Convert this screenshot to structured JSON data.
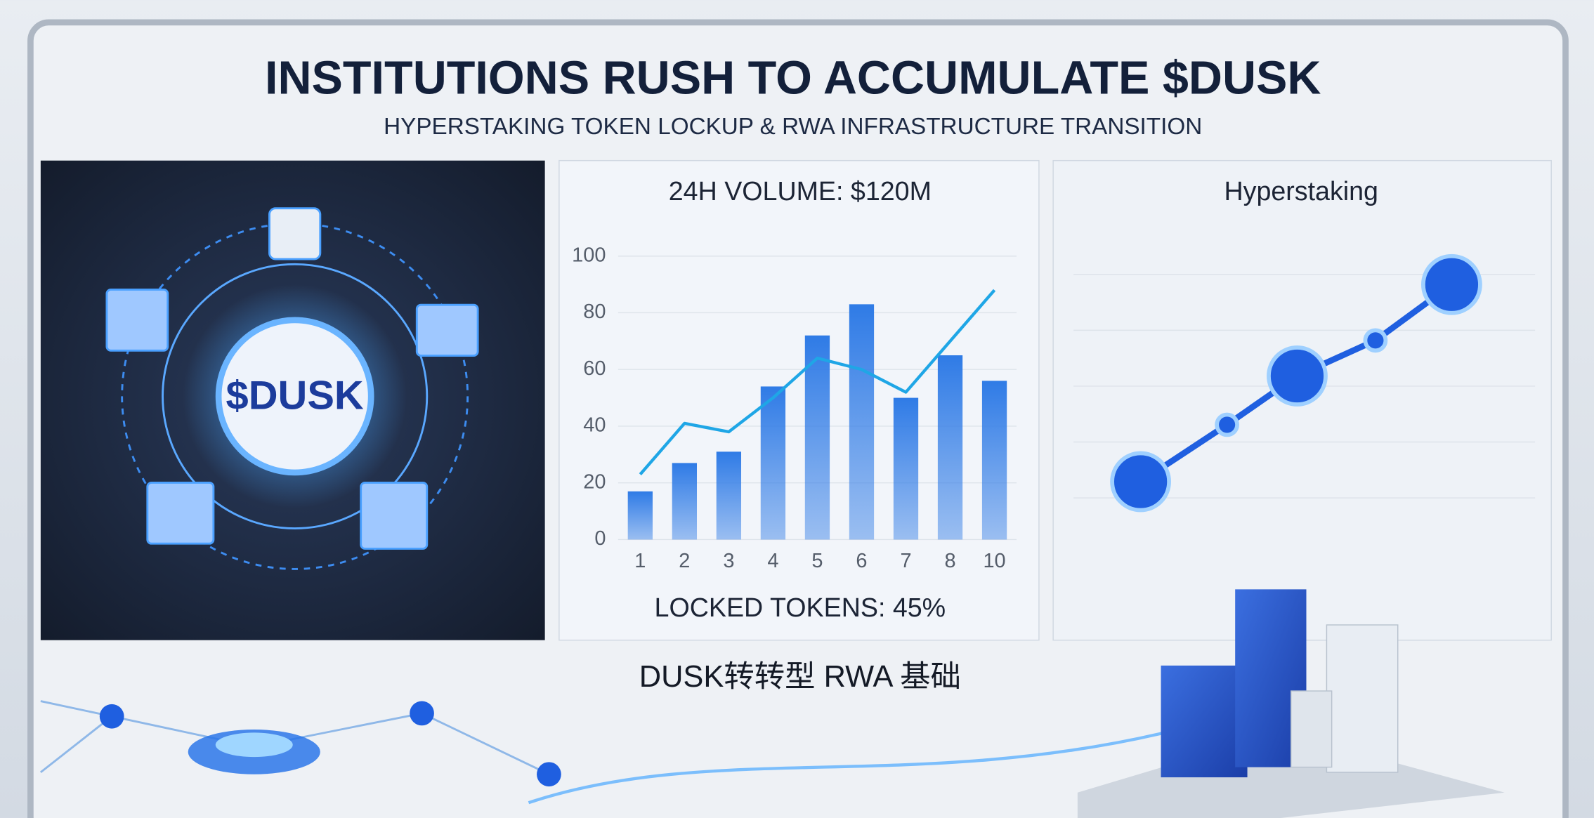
{
  "header": {
    "title": "INSTITUTIONS RUSH TO ACCUMULATE $DUSK",
    "subtitle": "HYPERSTAKING TOKEN LOCKUP & RWA INFRASTRUCTURE TRANSITION"
  },
  "left_panel": {
    "label": "$DUSK"
  },
  "chart_data": {
    "type": "bar",
    "title": "24H VOLUME: $120M",
    "footer": "LOCKED TOKENS: 45%",
    "categories": [
      "1",
      "2",
      "3",
      "4",
      "5",
      "6",
      "7",
      "8",
      "10"
    ],
    "series": [
      {
        "type": "bar",
        "color": "#2f7be6",
        "values": [
          17,
          27,
          31,
          54,
          72,
          83,
          50,
          65,
          56
        ]
      },
      {
        "type": "line",
        "color": "#1fa6e6",
        "values": [
          23,
          41,
          38,
          50,
          64,
          60,
          52,
          70,
          88
        ]
      }
    ],
    "ylim": [
      0,
      100
    ],
    "yticks": [
      0,
      20,
      40,
      60,
      80,
      100
    ],
    "grid": true
  },
  "right_panel": {
    "title": "Hyperstaking"
  },
  "footer": {
    "caption": "DUSK转转型 RWA 基础"
  }
}
